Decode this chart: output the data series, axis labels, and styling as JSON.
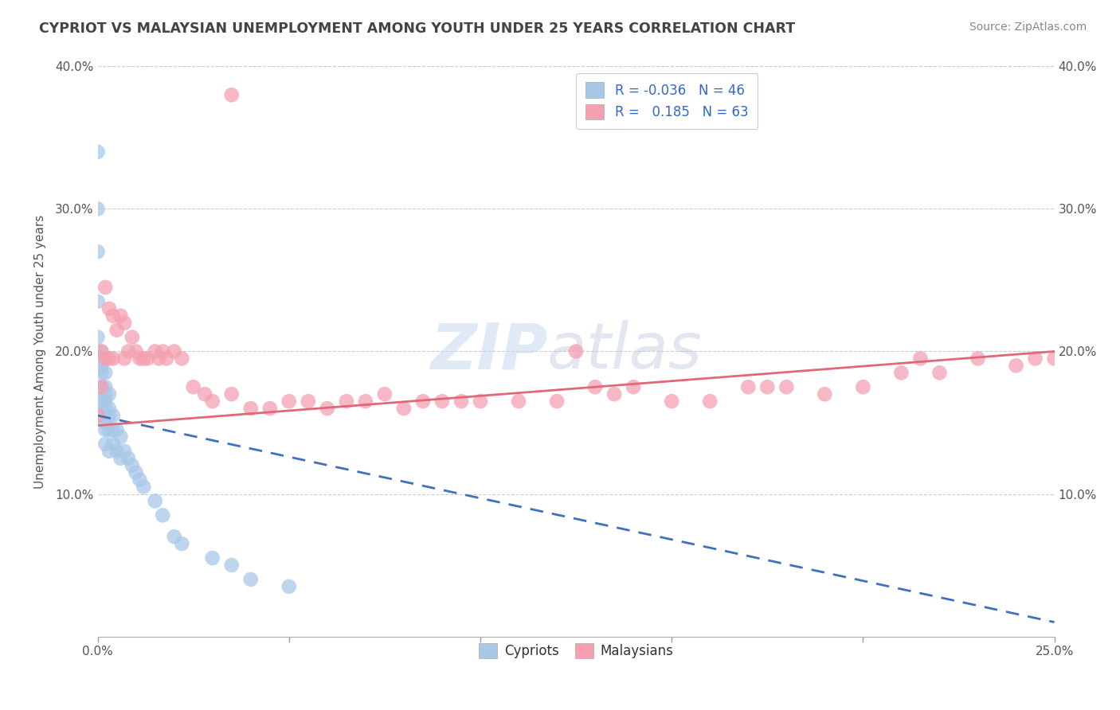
{
  "title": "CYPRIOT VS MALAYSIAN UNEMPLOYMENT AMONG YOUTH UNDER 25 YEARS CORRELATION CHART",
  "source": "Source: ZipAtlas.com",
  "ylabel": "Unemployment Among Youth under 25 years",
  "xlim": [
    0.0,
    0.25
  ],
  "ylim": [
    0.0,
    0.4
  ],
  "yticks": [
    0.0,
    0.1,
    0.2,
    0.3,
    0.4
  ],
  "background_color": "#ffffff",
  "watermark_zip": "ZIP",
  "watermark_atlas": "atlas",
  "cypriot_color": "#a8c8e8",
  "malaysian_color": "#f4a0b0",
  "cypriot_line_color": "#4070c0",
  "malaysian_line_color": "#e06878",
  "grid_color": "#cccccc",
  "title_color": "#444444",
  "source_color": "#888888",
  "tick_color": "#555555",
  "cypriot_x": [
    0.0,
    0.0,
    0.0,
    0.0,
    0.0,
    0.001,
    0.001,
    0.001,
    0.001,
    0.001,
    0.001,
    0.001,
    0.002,
    0.002,
    0.002,
    0.002,
    0.002,
    0.002,
    0.002,
    0.002,
    0.003,
    0.003,
    0.003,
    0.003,
    0.003,
    0.004,
    0.004,
    0.004,
    0.005,
    0.005,
    0.006,
    0.006,
    0.007,
    0.008,
    0.009,
    0.01,
    0.011,
    0.012,
    0.015,
    0.017,
    0.02,
    0.022,
    0.03,
    0.035,
    0.04,
    0.05
  ],
  "cypriot_y": [
    0.34,
    0.3,
    0.27,
    0.235,
    0.21,
    0.2,
    0.195,
    0.19,
    0.185,
    0.175,
    0.165,
    0.155,
    0.185,
    0.175,
    0.17,
    0.165,
    0.16,
    0.15,
    0.145,
    0.135,
    0.17,
    0.16,
    0.155,
    0.145,
    0.13,
    0.155,
    0.145,
    0.135,
    0.145,
    0.13,
    0.14,
    0.125,
    0.13,
    0.125,
    0.12,
    0.115,
    0.11,
    0.105,
    0.095,
    0.085,
    0.07,
    0.065,
    0.055,
    0.05,
    0.04,
    0.035
  ],
  "malaysian_x": [
    0.0,
    0.001,
    0.001,
    0.002,
    0.002,
    0.003,
    0.003,
    0.004,
    0.004,
    0.005,
    0.006,
    0.007,
    0.007,
    0.008,
    0.009,
    0.01,
    0.011,
    0.012,
    0.013,
    0.015,
    0.016,
    0.017,
    0.018,
    0.02,
    0.022,
    0.025,
    0.028,
    0.03,
    0.035,
    0.04,
    0.045,
    0.05,
    0.055,
    0.06,
    0.065,
    0.07,
    0.075,
    0.08,
    0.085,
    0.09,
    0.095,
    0.1,
    0.11,
    0.12,
    0.125,
    0.13,
    0.135,
    0.14,
    0.15,
    0.16,
    0.17,
    0.175,
    0.18,
    0.19,
    0.2,
    0.21,
    0.215,
    0.22,
    0.23,
    0.24,
    0.245,
    0.25,
    0.035
  ],
  "malaysian_y": [
    0.155,
    0.2,
    0.175,
    0.245,
    0.195,
    0.195,
    0.23,
    0.225,
    0.195,
    0.215,
    0.225,
    0.195,
    0.22,
    0.2,
    0.21,
    0.2,
    0.195,
    0.195,
    0.195,
    0.2,
    0.195,
    0.2,
    0.195,
    0.2,
    0.195,
    0.175,
    0.17,
    0.165,
    0.17,
    0.16,
    0.16,
    0.165,
    0.165,
    0.16,
    0.165,
    0.165,
    0.17,
    0.16,
    0.165,
    0.165,
    0.165,
    0.165,
    0.165,
    0.165,
    0.2,
    0.175,
    0.17,
    0.175,
    0.165,
    0.165,
    0.175,
    0.175,
    0.175,
    0.17,
    0.175,
    0.185,
    0.195,
    0.185,
    0.195,
    0.19,
    0.195,
    0.195,
    0.38
  ],
  "cy_line_x0": 0.0,
  "cy_line_x1": 0.25,
  "cy_line_y0": 0.155,
  "cy_line_y1": 0.01,
  "my_line_x0": 0.0,
  "my_line_x1": 0.25,
  "my_line_y0": 0.148,
  "my_line_y1": 0.2
}
